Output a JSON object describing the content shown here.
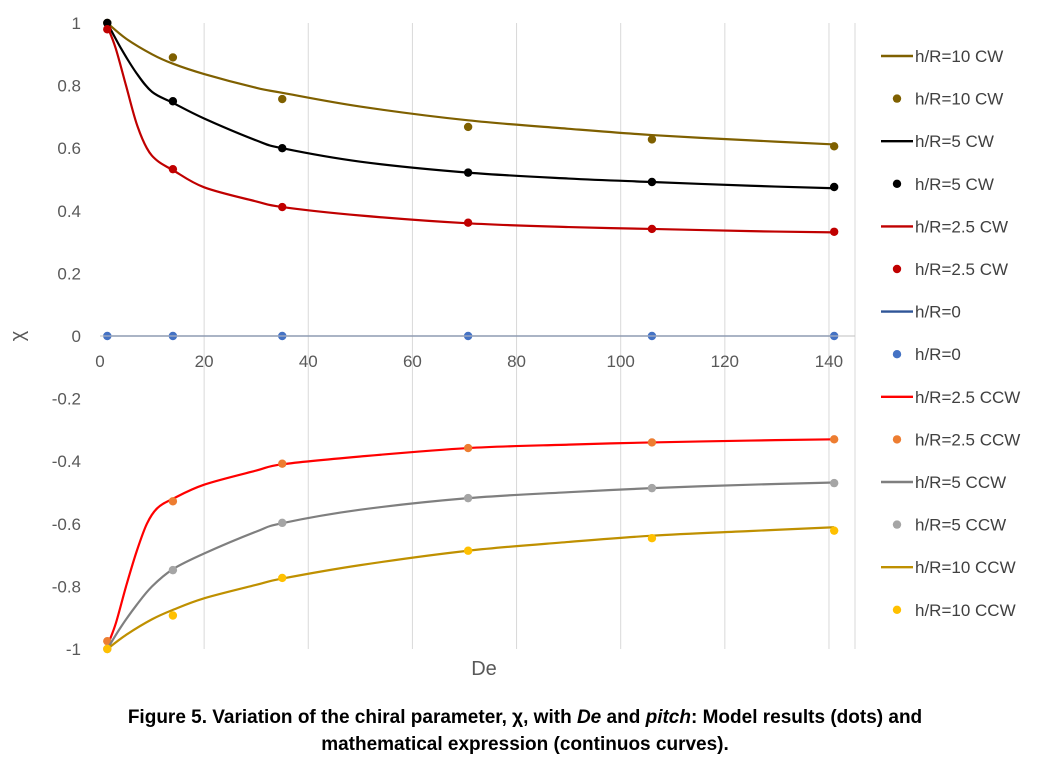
{
  "chart_data": {
    "type": "line",
    "title": "",
    "xlabel": "De",
    "ylabel": "χ",
    "xlim": [
      0,
      145
    ],
    "ylim": [
      -1,
      1
    ],
    "x_ticks": [
      0,
      20,
      40,
      60,
      80,
      100,
      120,
      140
    ],
    "y_ticks": [
      1,
      0.8,
      0.6,
      0.4,
      0.2,
      0,
      -0.2,
      -0.4,
      -0.6,
      -0.8,
      -1
    ],
    "grid": "vertical",
    "legend_position": "right",
    "series": [
      {
        "name": "h/R=10 CW",
        "style": "line",
        "color": "#7f6000",
        "x": [
          1.4,
          5,
          10,
          14,
          20,
          30,
          35,
          50,
          70.7,
          90,
          106,
          125,
          141
        ],
        "values": [
          1.0,
          0.95,
          0.9,
          0.87,
          0.837,
          0.793,
          0.777,
          0.733,
          0.689,
          0.662,
          0.642,
          0.625,
          0.612
        ]
      },
      {
        "name": "h/R=10 CW",
        "style": "dots",
        "color": "#7f6000",
        "x": [
          1.4,
          14,
          35,
          70.7,
          106,
          141
        ],
        "values": [
          1.0,
          0.89,
          0.757,
          0.668,
          0.628,
          0.606
        ]
      },
      {
        "name": "h/R=5 CW",
        "style": "line",
        "color": "#000000",
        "x": [
          1.4,
          4,
          7,
          10,
          14,
          20,
          30,
          35,
          50,
          70.7,
          90,
          106,
          125,
          141
        ],
        "values": [
          1.0,
          0.92,
          0.84,
          0.78,
          0.745,
          0.695,
          0.625,
          0.6,
          0.557,
          0.522,
          0.503,
          0.492,
          0.48,
          0.472
        ]
      },
      {
        "name": "h/R=5 CW",
        "style": "dots",
        "color": "#000000",
        "x": [
          1.4,
          14,
          35,
          70.7,
          106,
          141
        ],
        "values": [
          1.0,
          0.75,
          0.6,
          0.522,
          0.492,
          0.476
        ]
      },
      {
        "name": "h/R=2.5 CW",
        "style": "line",
        "color": "#c00000",
        "x": [
          1.4,
          3,
          5,
          7,
          9,
          11,
          14,
          20,
          30,
          35,
          50,
          70.7,
          90,
          106,
          125,
          141
        ],
        "values": [
          0.99,
          0.92,
          0.8,
          0.68,
          0.6,
          0.56,
          0.53,
          0.475,
          0.43,
          0.412,
          0.385,
          0.36,
          0.348,
          0.342,
          0.335,
          0.331
        ]
      },
      {
        "name": "h/R=2.5 CW",
        "style": "dots",
        "color": "#c00000",
        "x": [
          1.4,
          14,
          35,
          70.7,
          106,
          141
        ],
        "values": [
          0.98,
          0.533,
          0.412,
          0.362,
          0.342,
          0.333
        ]
      },
      {
        "name": "h/R=0",
        "style": "line",
        "color": "#2f5597",
        "x": [
          1.4,
          141
        ],
        "values": [
          0,
          0
        ]
      },
      {
        "name": "h/R=0",
        "style": "dots",
        "color": "#4472c4",
        "x": [
          1.4,
          14,
          35,
          70.7,
          106,
          141
        ],
        "values": [
          0,
          0,
          0,
          0,
          0,
          0
        ]
      },
      {
        "name": "h/R=2.5 CCW",
        "style": "line",
        "color": "#ff0000",
        "x": [
          1.4,
          3,
          5,
          7,
          9,
          11,
          14,
          20,
          30,
          35,
          50,
          70.7,
          90,
          106,
          125,
          141
        ],
        "values": [
          -0.99,
          -0.92,
          -0.8,
          -0.69,
          -0.6,
          -0.55,
          -0.52,
          -0.475,
          -0.43,
          -0.41,
          -0.385,
          -0.358,
          -0.347,
          -0.34,
          -0.334,
          -0.33
        ]
      },
      {
        "name": "h/R=2.5 CCW",
        "style": "dots",
        "color": "#ed7d31",
        "x": [
          1.4,
          14,
          35,
          70.7,
          106,
          141
        ],
        "values": [
          -0.975,
          -0.528,
          -0.408,
          -0.358,
          -0.34,
          -0.33
        ]
      },
      {
        "name": "h/R=5 CCW",
        "style": "line",
        "color": "#7f7f7f",
        "x": [
          1.4,
          4,
          7,
          10,
          14,
          20,
          30,
          35,
          50,
          70.7,
          90,
          106,
          125,
          141
        ],
        "values": [
          -1.0,
          -0.93,
          -0.86,
          -0.8,
          -0.745,
          -0.695,
          -0.625,
          -0.598,
          -0.555,
          -0.518,
          -0.499,
          -0.486,
          -0.475,
          -0.468
        ]
      },
      {
        "name": "h/R=5 CCW",
        "style": "dots",
        "color": "#a5a5a5",
        "x": [
          1.4,
          14,
          35,
          70.7,
          106,
          141
        ],
        "values": [
          -1.0,
          -0.748,
          -0.597,
          -0.518,
          -0.486,
          -0.47
        ]
      },
      {
        "name": "h/R=10 CCW",
        "style": "line",
        "color": "#bf9000",
        "x": [
          1.4,
          5,
          10,
          14,
          20,
          30,
          35,
          50,
          70.7,
          90,
          106,
          125,
          141
        ],
        "values": [
          -1.0,
          -0.955,
          -0.905,
          -0.875,
          -0.838,
          -0.795,
          -0.775,
          -0.732,
          -0.686,
          -0.658,
          -0.638,
          -0.623,
          -0.611
        ]
      },
      {
        "name": "h/R=10 CCW",
        "style": "dots",
        "color": "#ffc000",
        "x": [
          1.4,
          14,
          35,
          70.7,
          106,
          141
        ],
        "values": [
          -1.0,
          -0.893,
          -0.773,
          -0.686,
          -0.646,
          -0.622
        ]
      }
    ]
  },
  "caption": {
    "part1": "Figure 5. Variation of  the chiral parameter, ",
    "chi": "χ",
    "part2": ", with ",
    "de": "De",
    "part3": " and ",
    "pitch": "pitch",
    "part4": ": Model results (dots) and",
    "line2": "mathematical expression (continuos curves)."
  }
}
